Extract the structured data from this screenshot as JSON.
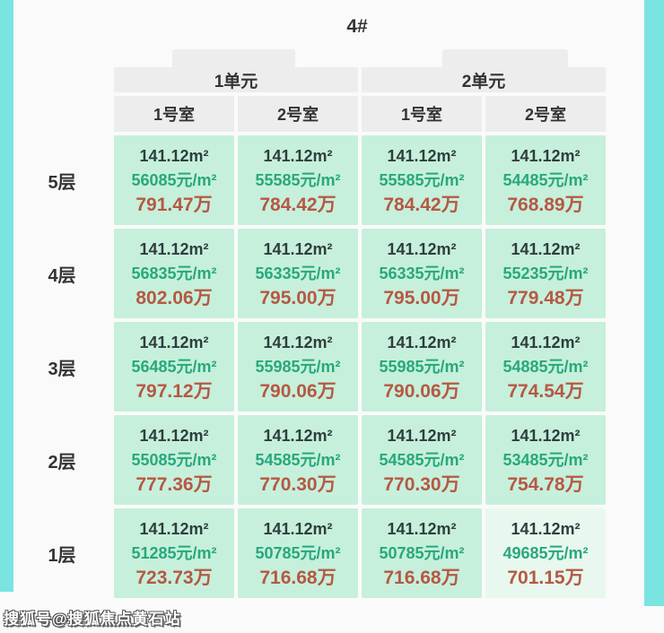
{
  "title": "4#",
  "colors": {
    "side_bar": "#7ae4e0",
    "header_bg": "#ededed",
    "cell_bg": "#c6f0db",
    "cell_bg_light": "#e8f8ee",
    "dark_text": "#333333",
    "area_text": "#2f3e3e",
    "price_green": "#27a87d",
    "total_red": "#b65843"
  },
  "table": {
    "units": [
      {
        "label": "1单元"
      },
      {
        "label": "2单元"
      }
    ],
    "room_headers": [
      "1号室",
      "2号室",
      "1号室",
      "2号室"
    ],
    "rows": [
      {
        "floor": "5层",
        "cells": [
          {
            "area": "141.12m²",
            "unit_price": "56085元/m²",
            "total": "791.47万"
          },
          {
            "area": "141.12m²",
            "unit_price": "55585元/m²",
            "total": "784.42万"
          },
          {
            "area": "141.12m²",
            "unit_price": "55585元/m²",
            "total": "784.42万"
          },
          {
            "area": "141.12m²",
            "unit_price": "54485元/m²",
            "total": "768.89万"
          }
        ]
      },
      {
        "floor": "4层",
        "cells": [
          {
            "area": "141.12m²",
            "unit_price": "56835元/m²",
            "total": "802.06万"
          },
          {
            "area": "141.12m²",
            "unit_price": "56335元/m²",
            "total": "795.00万"
          },
          {
            "area": "141.12m²",
            "unit_price": "56335元/m²",
            "total": "795.00万"
          },
          {
            "area": "141.12m²",
            "unit_price": "55235元/m²",
            "total": "779.48万"
          }
        ]
      },
      {
        "floor": "3层",
        "cells": [
          {
            "area": "141.12m²",
            "unit_price": "56485元/m²",
            "total": "797.12万"
          },
          {
            "area": "141.12m²",
            "unit_price": "55985元/m²",
            "total": "790.06万"
          },
          {
            "area": "141.12m²",
            "unit_price": "55985元/m²",
            "total": "790.06万"
          },
          {
            "area": "141.12m²",
            "unit_price": "54885元/m²",
            "total": "774.54万"
          }
        ]
      },
      {
        "floor": "2层",
        "cells": [
          {
            "area": "141.12m²",
            "unit_price": "55085元/m²",
            "total": "777.36万"
          },
          {
            "area": "141.12m²",
            "unit_price": "54585元/m²",
            "total": "770.30万"
          },
          {
            "area": "141.12m²",
            "unit_price": "54585元/m²",
            "total": "770.30万"
          },
          {
            "area": "141.12m²",
            "unit_price": "53485元/m²",
            "total": "754.78万"
          }
        ]
      },
      {
        "floor": "1层",
        "cells": [
          {
            "area": "141.12m²",
            "unit_price": "51285元/m²",
            "total": "723.73万"
          },
          {
            "area": "141.12m²",
            "unit_price": "50785元/m²",
            "total": "716.68万"
          },
          {
            "area": "141.12m²",
            "unit_price": "50785元/m²",
            "total": "716.68万"
          },
          {
            "area": "141.12m²",
            "unit_price": "49685元/m²",
            "total": "701.15万"
          }
        ]
      }
    ]
  },
  "watermark": "搜狐号@搜狐焦点黄石站",
  "chart_data": {
    "type": "table",
    "title": "4#",
    "column_groups": [
      "1单元",
      "2单元"
    ],
    "columns": [
      "1单元-1号室",
      "1单元-2号室",
      "2单元-1号室",
      "2单元-2号室"
    ],
    "row_labels": [
      "5层",
      "4层",
      "3层",
      "2层",
      "1层"
    ],
    "area_m2": 141.12,
    "unit_price_yuan_per_m2": [
      [
        56085,
        55585,
        55585,
        54485
      ],
      [
        56835,
        56335,
        56335,
        55235
      ],
      [
        56485,
        55985,
        55985,
        54885
      ],
      [
        55085,
        54585,
        54585,
        53485
      ],
      [
        51285,
        50785,
        50785,
        49685
      ]
    ],
    "total_price_wan": [
      [
        791.47,
        784.42,
        784.42,
        768.89
      ],
      [
        802.06,
        795.0,
        795.0,
        779.48
      ],
      [
        797.12,
        790.06,
        790.06,
        774.54
      ],
      [
        777.36,
        770.3,
        770.3,
        754.78
      ],
      [
        723.73,
        716.68,
        716.68,
        701.15
      ]
    ]
  }
}
